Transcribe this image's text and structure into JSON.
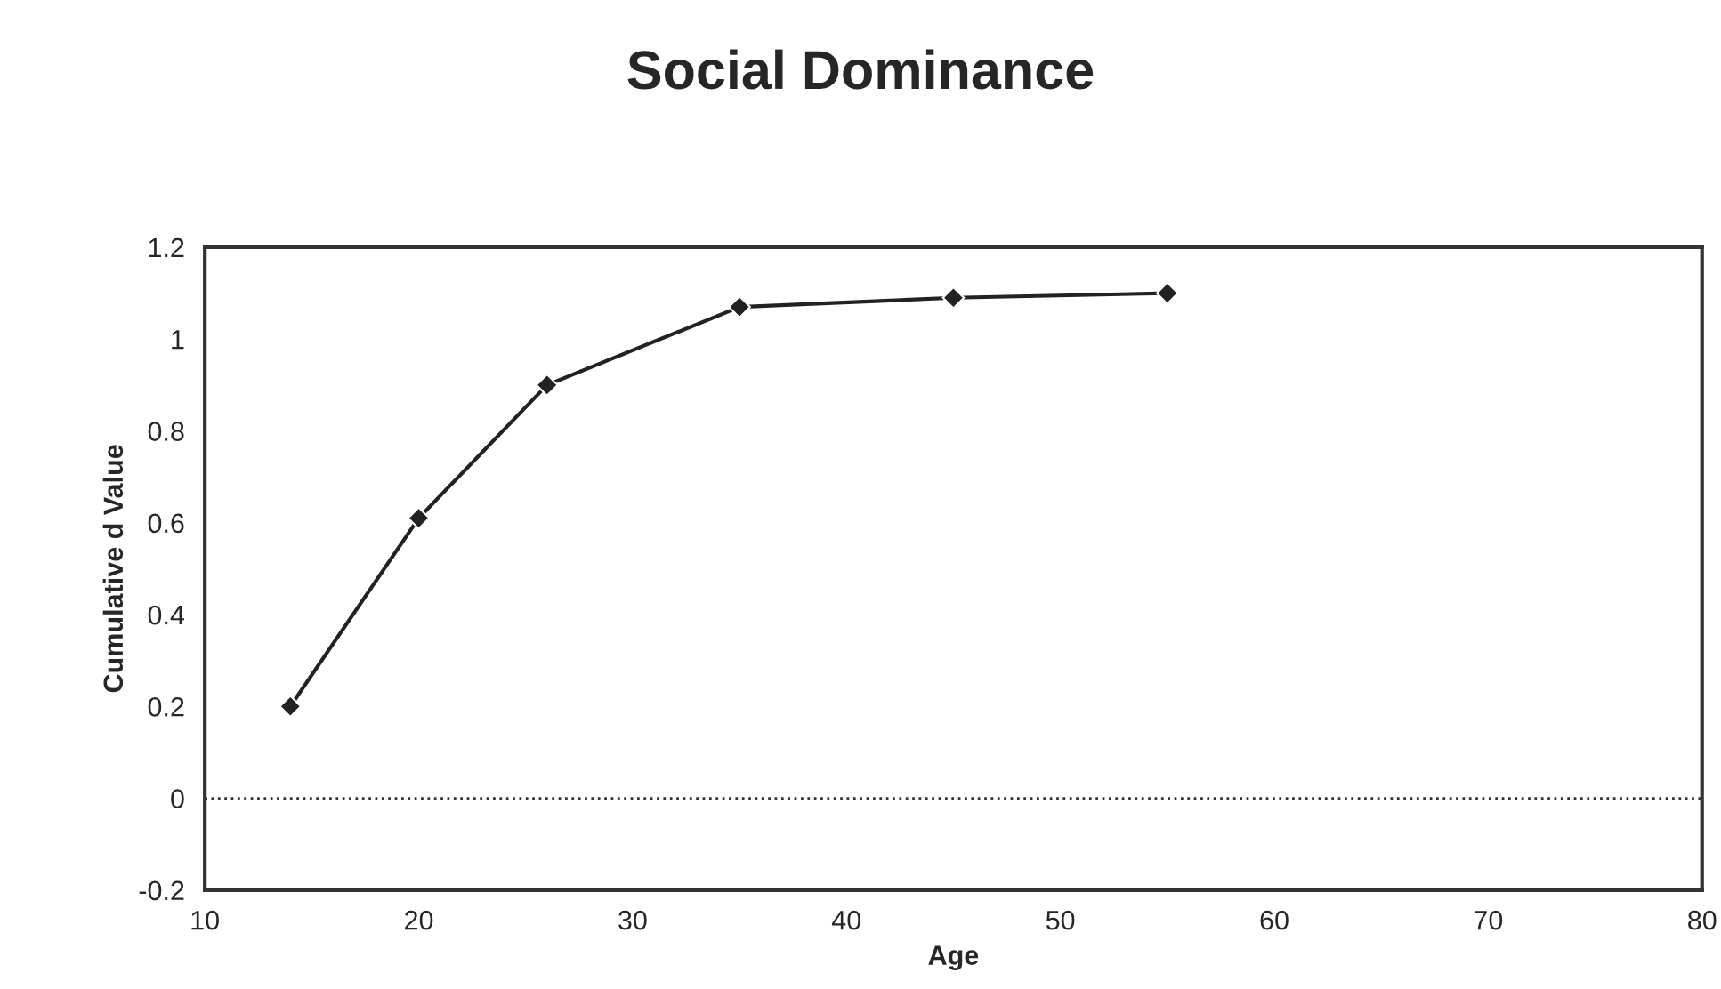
{
  "chart_data": {
    "type": "line",
    "title": "Social Dominance",
    "xlabel": "Age",
    "ylabel": "Cumulative d Value",
    "x": [
      14,
      20,
      26,
      35,
      45,
      55
    ],
    "series": [
      {
        "color": "#222222",
        "values": [
          0.2,
          0.61,
          0.9,
          1.07,
          1.09,
          1.1
        ]
      }
    ],
    "xlim": [
      10,
      80
    ],
    "xticks": [
      10,
      20,
      30,
      40,
      50,
      60,
      70,
      80
    ],
    "ylim": [
      -0.2,
      1.2
    ],
    "yticks": [
      {
        "value": -0.2,
        "label": "-0.2"
      },
      0,
      0.2,
      0.4,
      0.6,
      0.8,
      1,
      1.2
    ],
    "ref_lines": [
      {
        "axis": "y",
        "value": 0,
        "color": "#333333",
        "line_style": "dotted"
      }
    ],
    "marker": "diamond",
    "line_style": "solid",
    "grid": false
  }
}
